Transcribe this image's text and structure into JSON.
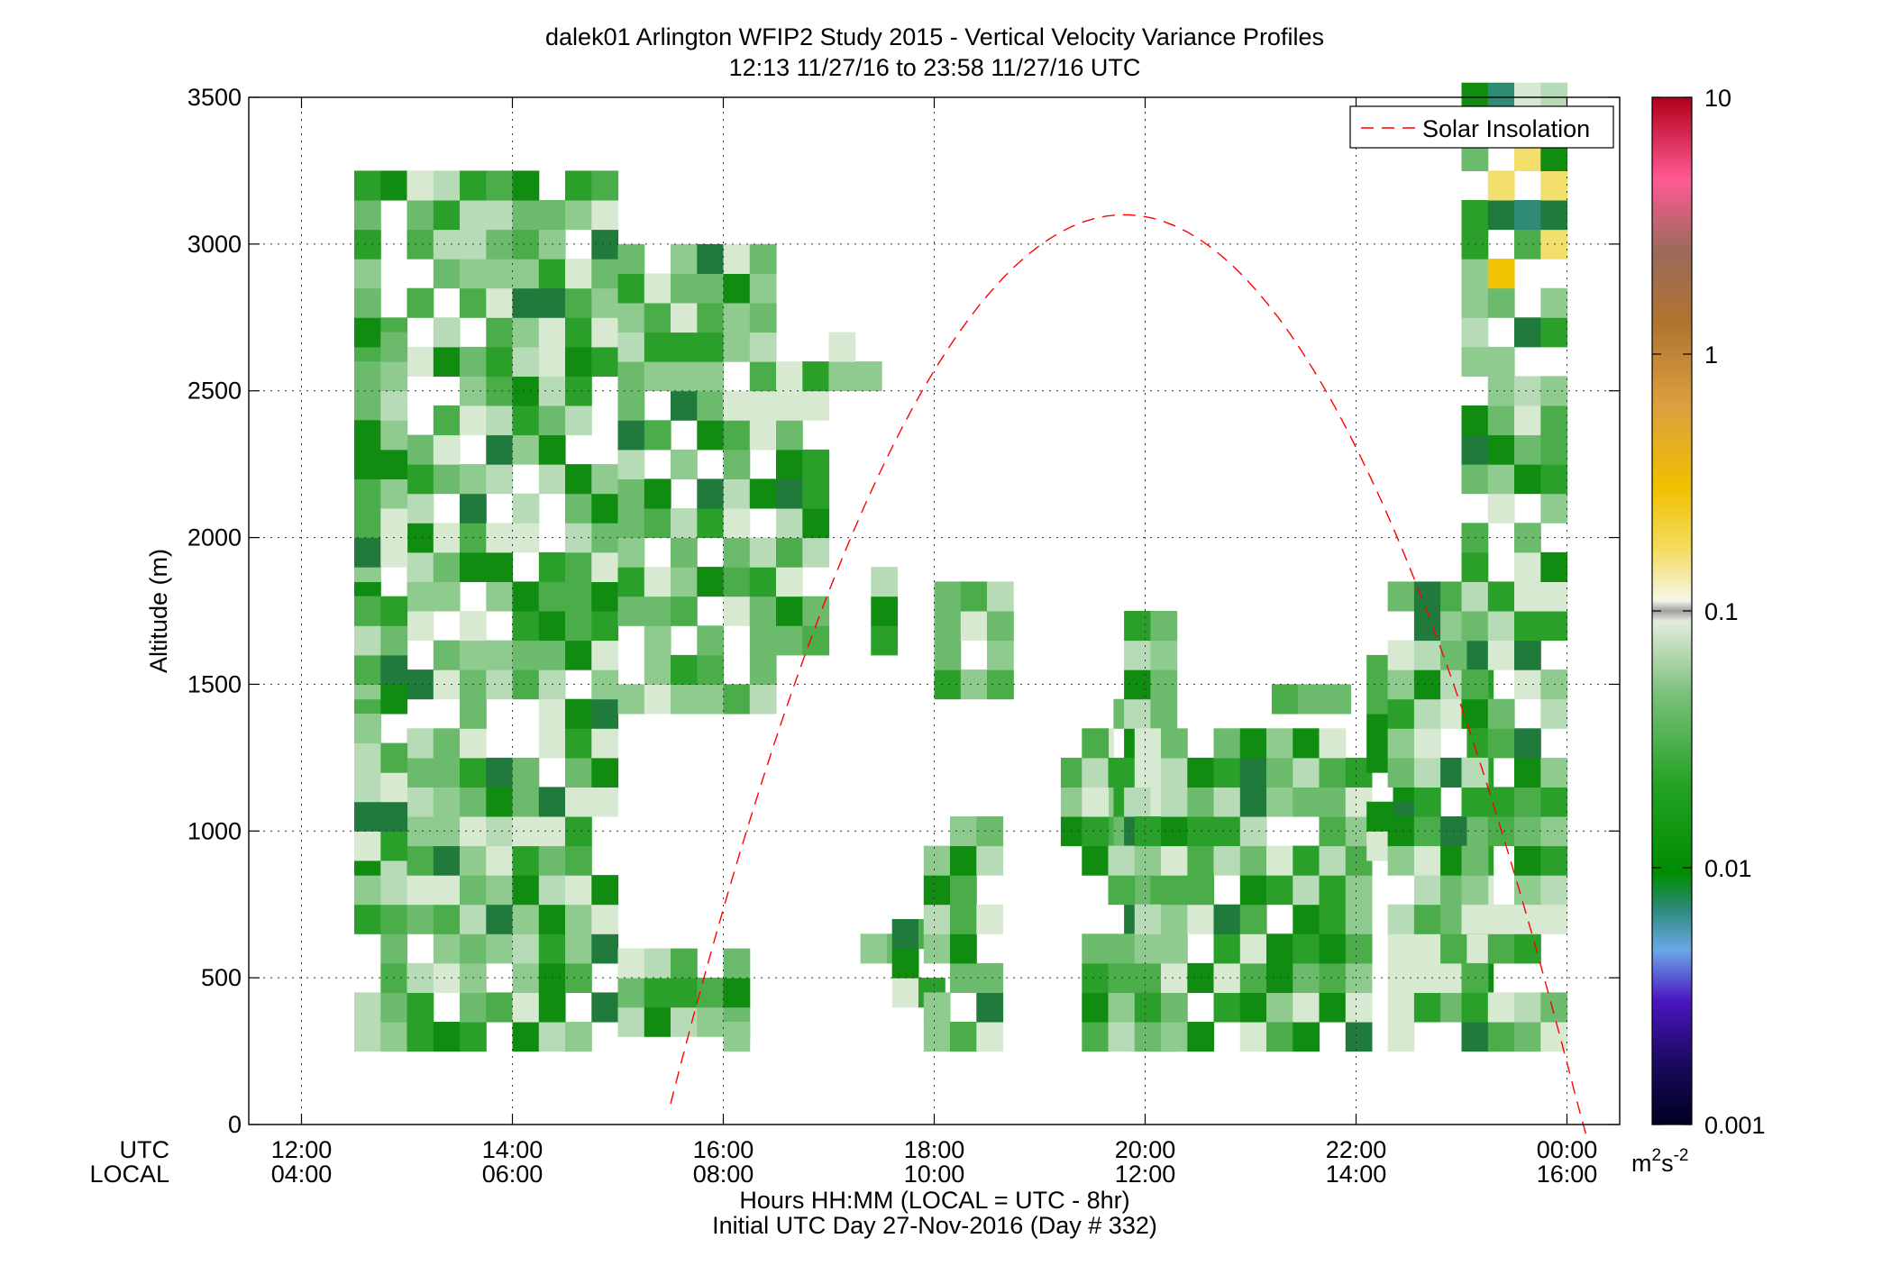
{
  "chart_data": {
    "type": "heatmap",
    "title": "dalek01 Arlington WFIP2 Study 2015 - Vertical Velocity Variance Profiles",
    "subtitle": "12:13 11/27/16 to 23:58 11/27/16  UTC",
    "ylabel": "Altitude (m)",
    "xlabel": "Hours HH:MM  (LOCAL = UTC - 8hr)",
    "xlabel2": "Initial UTC Day 27-Nov-2016 (Day # 332)",
    "row_label_utc": "UTC",
    "row_label_local": "LOCAL",
    "xlim_hours": [
      11.5,
      24.5
    ],
    "ylim": [
      0,
      3500
    ],
    "x_ticks": [
      {
        "value": 12,
        "utc": "12:00",
        "local": "04:00"
      },
      {
        "value": 14,
        "utc": "14:00",
        "local": "06:00"
      },
      {
        "value": 16,
        "utc": "16:00",
        "local": "08:00"
      },
      {
        "value": 18,
        "utc": "18:00",
        "local": "10:00"
      },
      {
        "value": 20,
        "utc": "20:00",
        "local": "12:00"
      },
      {
        "value": 22,
        "utc": "22:00",
        "local": "14:00"
      },
      {
        "value": 24,
        "utc": "00:00",
        "local": "16:00"
      }
    ],
    "y_ticks": [
      "0",
      "500",
      "1000",
      "1500",
      "2000",
      "2500",
      "3000",
      "3500"
    ],
    "grid": true,
    "legend": {
      "position": "top-right",
      "entries": [
        "Solar Insolation"
      ]
    },
    "colorbar": {
      "scale": "log",
      "range": [
        0.001,
        10
      ],
      "ticks": [
        "0.001",
        "0.01",
        "0.1",
        "1",
        "10"
      ],
      "units": "m",
      "units_superscript": "2",
      "units_tail": "s",
      "units_tail_superscript": "-2"
    },
    "cell_size": {
      "hours": 0.25,
      "meters": 50
    },
    "solar_insolation": {
      "start_hour": 15.5,
      "peak_hour": 19.8,
      "end_hour": 24.2,
      "peak_altitude": 3100
    },
    "cells": [
      {
        "hour": 14.625,
        "alt": 825,
        "value": 0.0
      }
    ]
  }
}
